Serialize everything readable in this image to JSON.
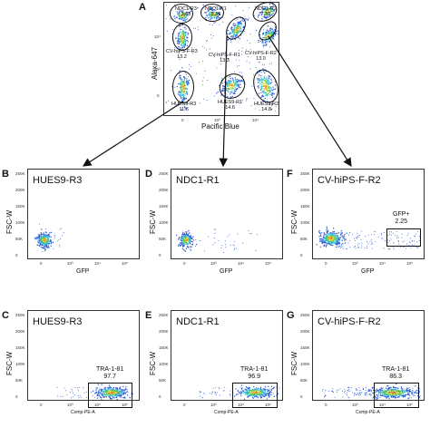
{
  "chart_data": [
    {
      "panel": "A",
      "type": "scatter",
      "xlabel": "Pacific Blue",
      "ylabel": "Alexa-647",
      "gates": [
        {
          "name": "NDC1-R3",
          "value": "3.88"
        },
        {
          "name": "NDC1-R1",
          "value": "5.36"
        },
        {
          "name": "NDC1-R2",
          "value": "7.31"
        },
        {
          "name": "CV-hiPS-F-R3",
          "value": "13.2"
        },
        {
          "name": "CV-hiPS-F-R1",
          "value": "13.3"
        },
        {
          "name": "CV-hiPS-F-R2",
          "value": "13.0"
        },
        {
          "name": "HUES9-R3",
          "value": "11.6"
        },
        {
          "name": "HUES9-R1",
          "value": "14.6"
        },
        {
          "name": "HUES9-R2",
          "value": "14.8"
        }
      ],
      "yticks": [
        "10⁴",
        "10³",
        "0"
      ],
      "xticks": [
        "0",
        "10³",
        "10⁴"
      ]
    },
    {
      "panel": "B",
      "type": "scatter",
      "title": "HUES9-R3",
      "xlabel": "GFP",
      "ylabel": "FSC-W"
    },
    {
      "panel": "D",
      "type": "scatter",
      "title": "NDC1-R1",
      "xlabel": "GFP",
      "ylabel": "FSC-W"
    },
    {
      "panel": "F",
      "type": "scatter",
      "title": "CV-hiPS-F-R2",
      "xlabel": "GFP",
      "ylabel": "FSC-W",
      "gate": {
        "name": "GFP+",
        "value": "2.25"
      }
    },
    {
      "panel": "C",
      "type": "scatter",
      "title": "HUES9-R3",
      "xlabel": "Comp-PE-A",
      "ylabel": "FSC-W",
      "gate": {
        "name": "TRA-1-81",
        "value": "97.7"
      }
    },
    {
      "panel": "E",
      "type": "scatter",
      "title": "NDC1-R1",
      "xlabel": "Comp-PE-A",
      "ylabel": "FSC-W",
      "gate": {
        "name": "TRA-1-81",
        "value": "96.9"
      }
    },
    {
      "panel": "G",
      "type": "scatter",
      "title": "CV-hiPS-F-R2",
      "xlabel": "Comp-PE-A",
      "ylabel": "FSC-W",
      "gate": {
        "name": "TRA-1-81",
        "value": "86.3"
      }
    }
  ],
  "yticks_fsc": [
    "250K",
    "200K",
    "150K",
    "100K",
    "50K",
    "0"
  ],
  "xticks_gfp": [
    "0",
    "10³",
    "10⁴",
    "10⁵"
  ],
  "xticks_pe": [
    "0",
    "10³",
    "10⁴",
    "10⁵"
  ],
  "letters": {
    "A": "A",
    "B": "B",
    "C": "C",
    "D": "D",
    "E": "E",
    "F": "F",
    "G": "G"
  },
  "colors": {
    "dot_blue": "#2b5cd6",
    "dot_cyan": "#35c0d8",
    "dot_green": "#5ec84a",
    "dot_yellow": "#e6d43a",
    "dot_orange": "#f08a2a"
  }
}
